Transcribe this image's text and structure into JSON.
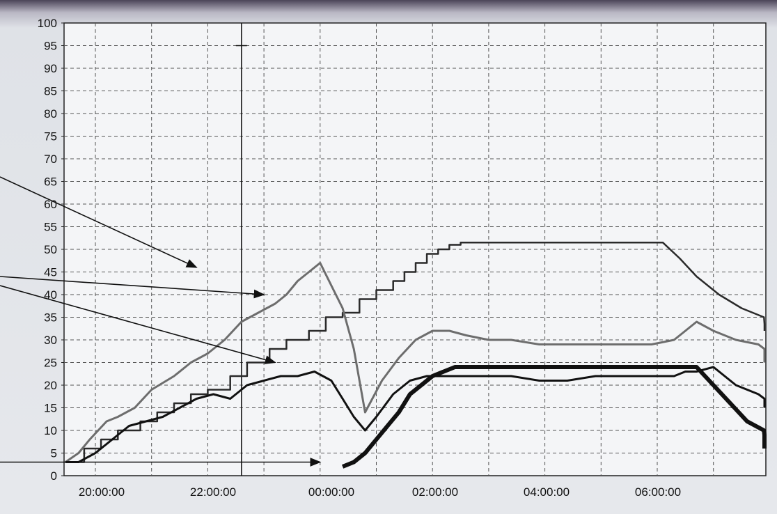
{
  "chart_data": {
    "type": "line",
    "title": "",
    "xlabel": "",
    "ylabel": "",
    "ylim": [
      0,
      100
    ],
    "xlim_hours": [
      19.0,
      26.0
    ],
    "y_ticks": [
      "0",
      "5",
      "10",
      "15",
      "20",
      "25",
      "30",
      "35",
      "40",
      "45",
      "50",
      "55",
      "60",
      "65",
      "70",
      "75",
      "80",
      "85",
      "90",
      "95",
      "100"
    ],
    "x_ticks": [
      {
        "label": "20:00:00",
        "h": 20
      },
      {
        "label": "22:00:00",
        "h": 22
      },
      {
        "label": "00:00:00",
        "h": 24
      },
      {
        "label": "02:00:00",
        "h": 26
      },
      {
        "label": "04:00:00",
        "h": 28
      },
      {
        "label": "06:00:00",
        "h": 30
      }
    ],
    "grid": true,
    "series": [
      {
        "color": "#2a2a2a",
        "width": 2.5,
        "x": [
          19.1,
          19.4,
          19.4,
          19.7,
          19.7,
          20.0,
          20.0,
          20.4,
          20.4,
          20.7,
          20.7,
          21.0,
          21.0,
          21.3,
          21.3,
          21.6,
          21.6,
          22.0,
          22.0,
          22.3,
          22.3,
          22.7,
          22.7,
          23.0,
          23.0,
          23.4,
          23.4,
          23.7,
          23.7,
          24.0,
          24.0,
          24.3,
          24.3,
          24.6,
          24.6,
          24.9,
          24.9,
          25.1,
          25.1,
          25.3,
          25.3,
          25.5,
          25.5,
          25.7,
          25.7,
          25.9,
          25.9,
          26.1,
          26.1,
          29.7,
          30.0,
          30.3,
          30.7,
          31.1,
          31.5,
          31.9,
          32.2,
          32.5
        ],
        "y": [
          3,
          3,
          6,
          6,
          8,
          8,
          10,
          10,
          12,
          12,
          14,
          14,
          16,
          16,
          18,
          18,
          19,
          19,
          22,
          22,
          25,
          25,
          28,
          28,
          30,
          30,
          32,
          32,
          35,
          35,
          36,
          36,
          39,
          39,
          41,
          41,
          43,
          43,
          45,
          45,
          47,
          47,
          49,
          49,
          50,
          50,
          51,
          51,
          51.5,
          51.5,
          48,
          44,
          40,
          37,
          35,
          33.5,
          33,
          32
        ]
      },
      {
        "color": "#6d6d6d",
        "width": 3,
        "x": [
          19.0,
          19.3,
          19.5,
          19.8,
          20.0,
          20.3,
          20.6,
          21.0,
          21.3,
          21.6,
          21.9,
          22.2,
          22.5,
          22.8,
          23.0,
          23.2,
          23.4,
          23.6,
          23.8,
          24.0,
          24.2,
          24.4,
          24.7,
          25.0,
          25.3,
          25.6,
          25.9,
          26.2,
          26.6,
          27.0,
          27.5,
          28.0,
          28.5,
          29.0,
          29.5,
          29.9,
          30.1,
          30.3,
          30.6,
          31.0,
          31.4,
          31.8,
          32.1,
          32.5
        ],
        "y": [
          3,
          5,
          8,
          12,
          13,
          15,
          19,
          22,
          25,
          27,
          30,
          34,
          36,
          38,
          40,
          43,
          45,
          47,
          42,
          37,
          28,
          14,
          21,
          26,
          30,
          32,
          32,
          31,
          30,
          30,
          29,
          29,
          29,
          29,
          29,
          30,
          32,
          34,
          32,
          30,
          29,
          28,
          26,
          25
        ]
      },
      {
        "color": "#111111",
        "width": 3,
        "x": [
          19.0,
          19.3,
          19.6,
          19.9,
          20.2,
          20.5,
          20.8,
          21.1,
          21.4,
          21.7,
          22.0,
          22.3,
          22.6,
          22.9,
          23.2,
          23.5,
          23.8,
          24.0,
          24.2,
          24.4,
          24.6,
          24.9,
          25.2,
          25.5,
          25.8,
          26.1,
          26.5,
          27.0,
          27.5,
          28.0,
          28.5,
          29.0,
          29.5,
          29.9,
          30.1,
          30.3,
          30.6,
          31.0,
          31.4,
          31.8,
          32.1,
          32.5
        ],
        "y": [
          3,
          3,
          5,
          8,
          11,
          12,
          13,
          15,
          17,
          18,
          17,
          20,
          21,
          22,
          22,
          23,
          21,
          17,
          13,
          10,
          13,
          18,
          21,
          22,
          22,
          22,
          22,
          22,
          21,
          21,
          22,
          22,
          22,
          22,
          23,
          23,
          24,
          20,
          18,
          17,
          16,
          15
        ]
      },
      {
        "color": "#111111",
        "width": 6,
        "x": [
          24.0,
          24.2,
          24.4,
          24.6,
          24.8,
          25.0,
          25.2,
          25.4,
          25.6,
          25.8,
          26.0,
          26.5,
          27.0,
          27.5,
          28.0,
          28.5,
          29.0,
          29.5,
          29.9,
          30.1,
          30.3,
          30.6,
          30.9,
          31.2,
          31.5,
          31.8,
          32.1,
          32.5
        ],
        "y": [
          2,
          3,
          5,
          8,
          11,
          14,
          18,
          20,
          22,
          23,
          24,
          24,
          24,
          24,
          24,
          24,
          24,
          24,
          24,
          24,
          24,
          20,
          16,
          12,
          10,
          9,
          8,
          6
        ]
      }
    ],
    "annotations": {
      "arrows": [
        {
          "x1": -0.6,
          "y1": 66,
          "x2": 21.4,
          "y2": 46
        },
        {
          "x1": -0.6,
          "y1": 44,
          "x2": 22.6,
          "y2": 40
        },
        {
          "x1": -0.6,
          "y1": 42,
          "x2": 22.8,
          "y2": 25
        },
        {
          "x1": -0.6,
          "y1": 3,
          "x2": 23.6,
          "y2": 3
        }
      ],
      "cursor_line_h": 22.2
    }
  }
}
